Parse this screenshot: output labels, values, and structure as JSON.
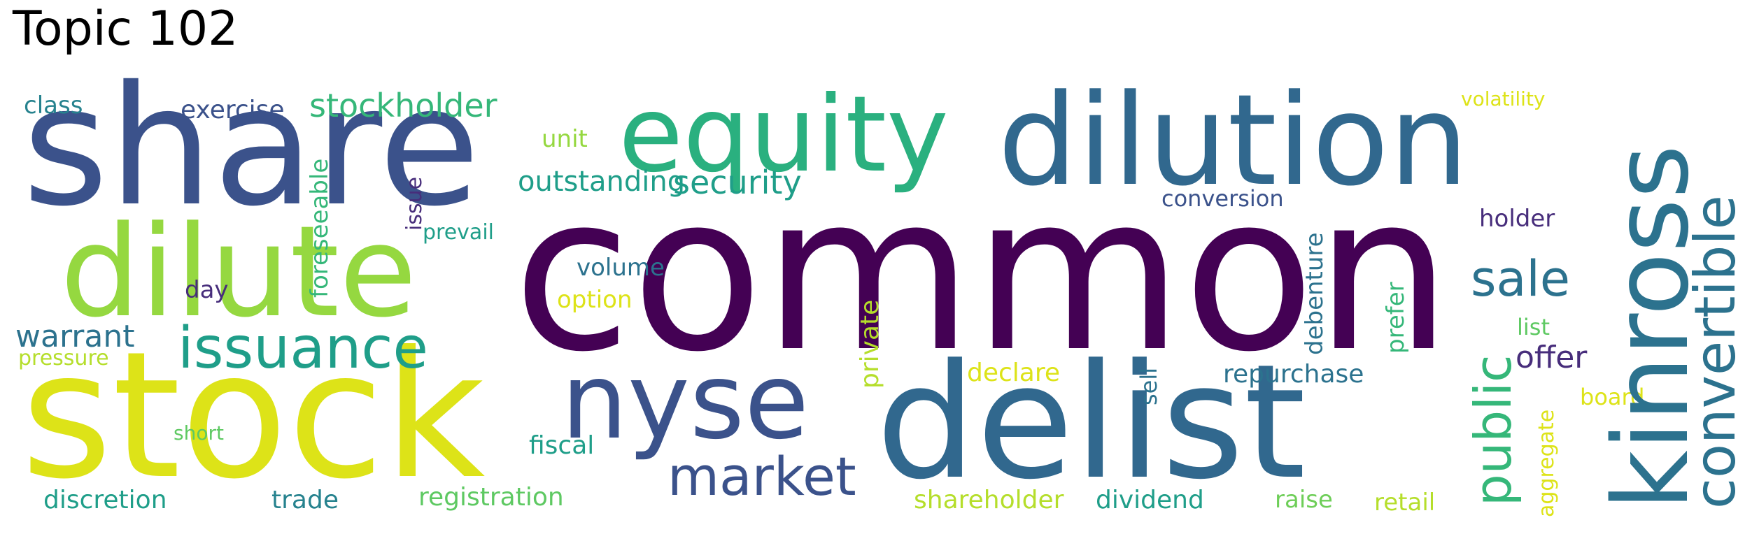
{
  "title": "Topic 102",
  "palette": {
    "deep_purple": "#440154",
    "indigo": "#472d7b",
    "blue": "#3b528b",
    "steel": "#31688e",
    "teal": "#26828e",
    "sea": "#1f9e89",
    "green": "#35b779",
    "lime": "#6ece58",
    "yellow_green": "#b5de2b",
    "yellow": "#dde318"
  },
  "words": {
    "common": "common",
    "share": "share",
    "stock": "stock",
    "dilute": "dilute",
    "delist": "delist",
    "dilution": "dilution",
    "equity": "equity",
    "kinross": "kinross",
    "nyse": "nyse",
    "convertible": "convertible",
    "issuance": "issuance",
    "market": "market",
    "public": "public",
    "sale": "sale",
    "stockholder": "stockholder",
    "security": "security",
    "outstanding": "outstanding",
    "warrant": "warrant",
    "offer": "offer",
    "exercise": "exercise",
    "foreseeable": "foreseeable",
    "repurchase": "repurchase",
    "registration": "registration",
    "shareholder": "shareholder",
    "dividend": "dividend",
    "discretion": "discretion",
    "conversion": "conversion",
    "debenture": "debenture",
    "volume": "volume",
    "option": "option",
    "fiscal": "fiscal",
    "trade": "trade",
    "holder": "holder",
    "class": "class",
    "unit": "unit",
    "issue": "issue",
    "prevail": "prevail",
    "day": "day",
    "pressure": "pressure",
    "short": "short",
    "private": "private",
    "declare": "declare",
    "sell": "sell",
    "prefer": "prefer",
    "list": "list",
    "board": "board",
    "aggregate": "aggregate",
    "raise": "raise",
    "retail": "retail",
    "volatility": "volatility"
  }
}
